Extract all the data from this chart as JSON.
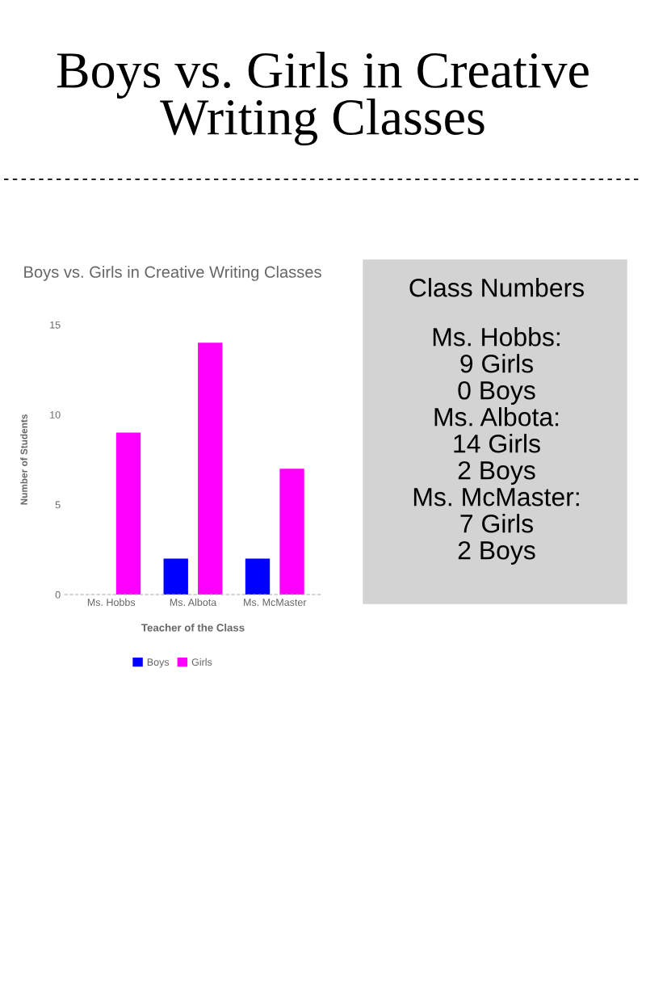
{
  "chart_data": [
    {
      "type": "other",
      "title": "Boys vs. Girls in Creative Writing Classes"
    },
    {
      "type": "bar",
      "title": "Boys vs. Girls in Creative Writing Classes",
      "xlabel": "Teacher of the Class",
      "ylabel": "Number of Students",
      "categories": [
        "Ms. Hobbs",
        "Ms. Albota",
        "Ms. McMaster"
      ],
      "series": [
        {
          "name": "Boys",
          "color": "#0000ff",
          "values": [
            0,
            2,
            2
          ]
        },
        {
          "name": "Girls",
          "color": "#ff00ff",
          "values": [
            9,
            14,
            7
          ]
        }
      ],
      "ylim": [
        0,
        15
      ],
      "yticks": [
        0,
        5,
        10,
        15
      ],
      "grid": false,
      "legend": "bottom"
    },
    {
      "type": "other",
      "title": "Class Numbers",
      "annotations": [
        "Ms. Hobbs:",
        "9 Girls",
        "0 Boys",
        "Ms. Albota:",
        "14 Girls",
        "2 Boys",
        "Ms. McMaster:",
        "7 Girls",
        "2 Boys"
      ]
    }
  ]
}
